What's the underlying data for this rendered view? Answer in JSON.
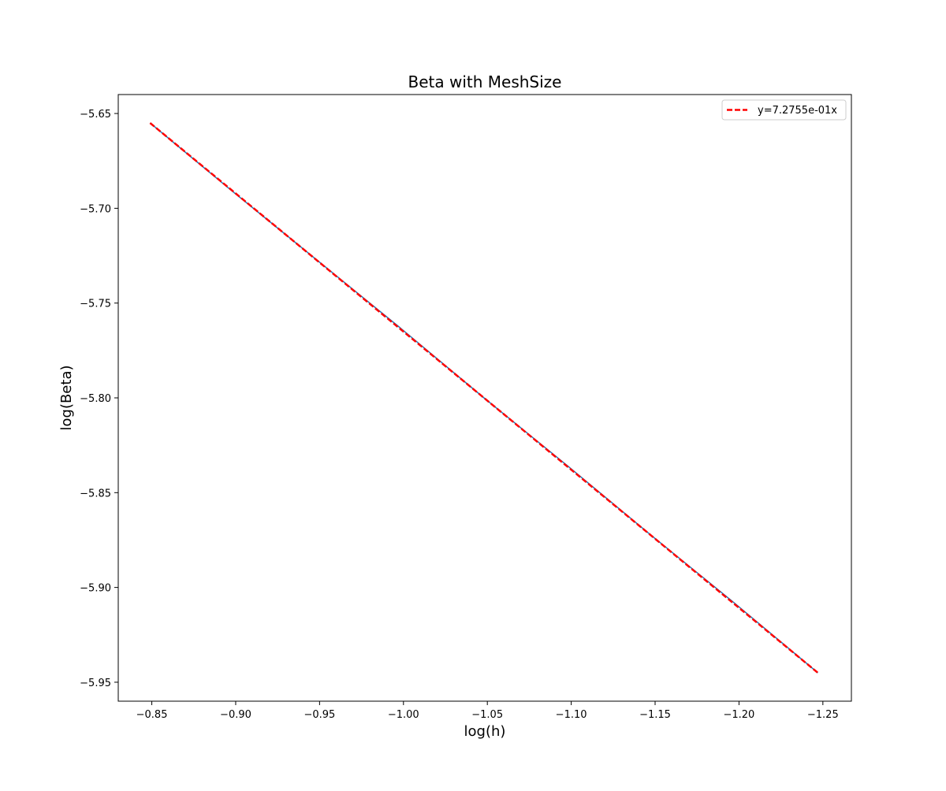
{
  "chart_data": {
    "type": "line",
    "title": "Beta with MeshSize",
    "xlabel": "log(h)",
    "ylabel": "log(Beta)",
    "xlim": [
      -0.83,
      -1.267
    ],
    "ylim": [
      -5.96,
      -5.64
    ],
    "x_inverted": true,
    "xticks": [
      -0.85,
      -0.9,
      -0.95,
      -1.0,
      -1.05,
      -1.1,
      -1.15,
      -1.2,
      -1.25
    ],
    "xtick_labels": [
      "−0.85",
      "−0.90",
      "−0.95",
      "−1.00",
      "−1.05",
      "−1.10",
      "−1.15",
      "−1.20",
      "−1.25"
    ],
    "yticks": [
      -5.65,
      -5.7,
      -5.75,
      -5.8,
      -5.85,
      -5.9,
      -5.95
    ],
    "ytick_labels": [
      "−5.65",
      "−5.70",
      "−5.75",
      "−5.80",
      "−5.85",
      "−5.90",
      "−5.95"
    ],
    "grid": false,
    "legend_position": "top-right",
    "series": [
      {
        "x": [
          -0.849,
          -0.898,
          -0.948,
          -0.998,
          -1.048,
          -1.098,
          -1.147,
          -1.197,
          -1.247
        ],
        "y": [
          -5.655,
          -5.691,
          -5.727,
          -5.763,
          -5.8,
          -5.836,
          -5.872,
          -5.908,
          -5.945
        ],
        "color": "#1f77b4",
        "style": "solid"
      },
      {
        "name": "y=7.2755e-01x",
        "x": [
          -0.849,
          -1.247
        ],
        "y": [
          -5.655,
          -5.945
        ],
        "color": "#ff0000",
        "style": "dashed"
      }
    ]
  }
}
